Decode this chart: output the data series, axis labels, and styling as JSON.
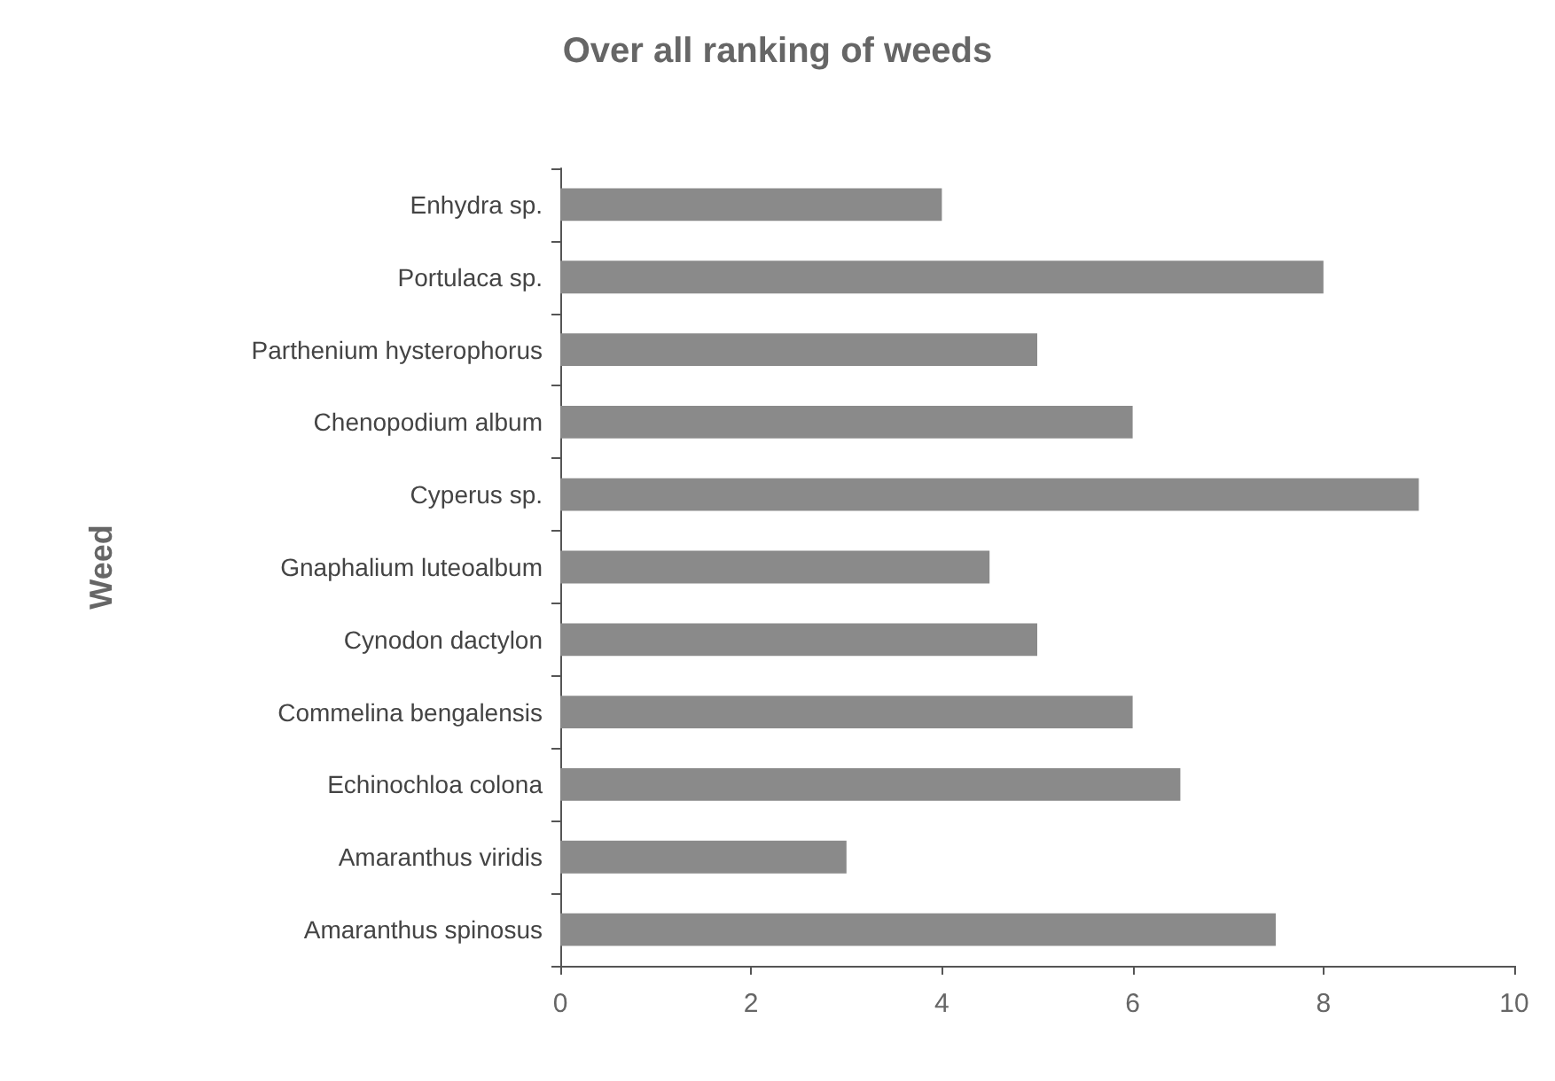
{
  "chart_data": {
    "type": "bar",
    "orientation": "horizontal",
    "title": "Over all ranking of weeds",
    "ylabel": "Weed",
    "categories": [
      "Enhydra sp.",
      "Portulaca sp.",
      "Parthenium hysterophorus",
      "Chenopodium album",
      "Cyperus sp.",
      "Gnaphalium luteoalbum",
      "Cynodon dactylon",
      "Commelina bengalensis",
      "Echinochloa colona",
      "Amaranthus viridis",
      "Amaranthus spinosus"
    ],
    "values": [
      4,
      8,
      5,
      6,
      9,
      4.5,
      5,
      6,
      6.5,
      3,
      7.5
    ],
    "color": "#8a8a8a",
    "xlim": [
      0,
      10
    ],
    "xticks": [
      0,
      2,
      4,
      6,
      8,
      10
    ],
    "grid": false
  }
}
